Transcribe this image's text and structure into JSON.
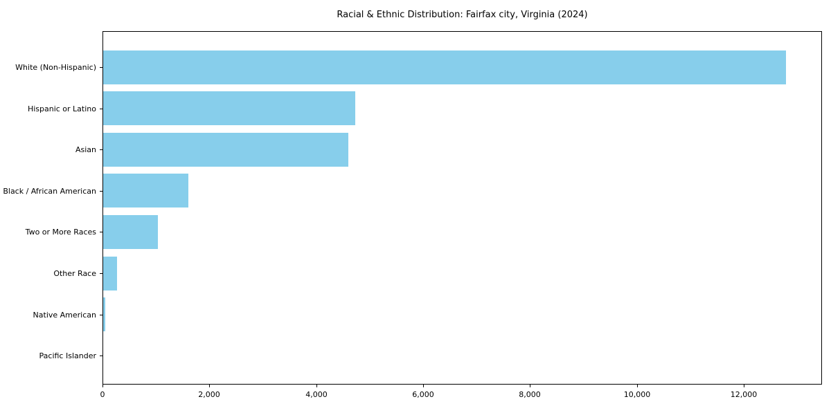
{
  "chart_data": {
    "type": "bar",
    "orientation": "horizontal",
    "title": "Racial & Ethnic Distribution: Fairfax city, Virginia (2024)",
    "xlabel": "",
    "ylabel": "",
    "categories": [
      "White (Non-Hispanic)",
      "Hispanic or Latino",
      "Asian",
      "Black / African American",
      "Two or More Races",
      "Other Race",
      "Native American",
      "Pacific Islander"
    ],
    "values": [
      12790,
      4720,
      4590,
      1590,
      1020,
      260,
      40,
      0
    ],
    "xlim": [
      0,
      13450
    ],
    "xticks": [
      0,
      2000,
      4000,
      6000,
      8000,
      10000,
      12000
    ],
    "xtick_labels": [
      "0",
      "2,000",
      "4,000",
      "6,000",
      "8,000",
      "10,000",
      "12,000"
    ],
    "bar_color": "#87CEEB",
    "axis_color": "#000000",
    "background_color": "#ffffff",
    "grid": false,
    "legend": false
  }
}
